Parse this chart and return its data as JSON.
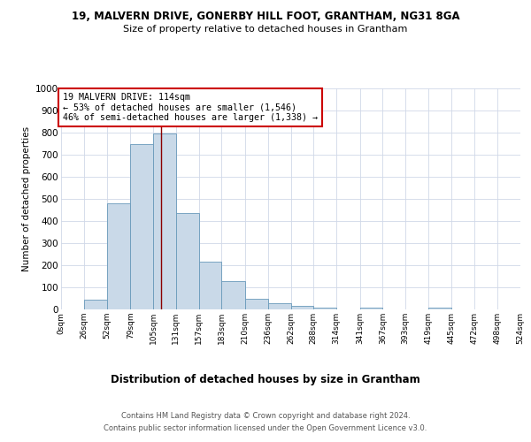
{
  "title1": "19, MALVERN DRIVE, GONERBY HILL FOOT, GRANTHAM, NG31 8GA",
  "title2": "Size of property relative to detached houses in Grantham",
  "xlabel": "Distribution of detached houses by size in Grantham",
  "ylabel": "Number of detached properties",
  "annotation_line1": "19 MALVERN DRIVE: 114sqm",
  "annotation_line2": "← 53% of detached houses are smaller (1,546)",
  "annotation_line3": "46% of semi-detached houses are larger (1,338) →",
  "footer1": "Contains HM Land Registry data © Crown copyright and database right 2024.",
  "footer2": "Contains public sector information licensed under the Open Government Licence v3.0.",
  "bar_edges": [
    0,
    26,
    52,
    79,
    105,
    131,
    157,
    183,
    210,
    236,
    262,
    288,
    314,
    341,
    367,
    393,
    419,
    445,
    472,
    498,
    524
  ],
  "bar_heights": [
    0,
    44,
    480,
    750,
    795,
    435,
    218,
    130,
    50,
    28,
    15,
    10,
    0,
    8,
    0,
    0,
    8,
    0,
    0,
    0
  ],
  "bar_color": "#c9d9e8",
  "bar_edge_color": "#6899ba",
  "marker_x": 114,
  "marker_color": "#8b0000",
  "ylim": [
    0,
    1000
  ],
  "xlim": [
    0,
    524
  ],
  "background_color": "#ffffff",
  "grid_color": "#d0d8e8",
  "annotation_box_color": "#cc0000",
  "tick_labels": [
    "0sqm",
    "26sqm",
    "52sqm",
    "79sqm",
    "105sqm",
    "131sqm",
    "157sqm",
    "183sqm",
    "210sqm",
    "236sqm",
    "262sqm",
    "288sqm",
    "314sqm",
    "341sqm",
    "367sqm",
    "393sqm",
    "419sqm",
    "445sqm",
    "472sqm",
    "498sqm",
    "524sqm"
  ]
}
